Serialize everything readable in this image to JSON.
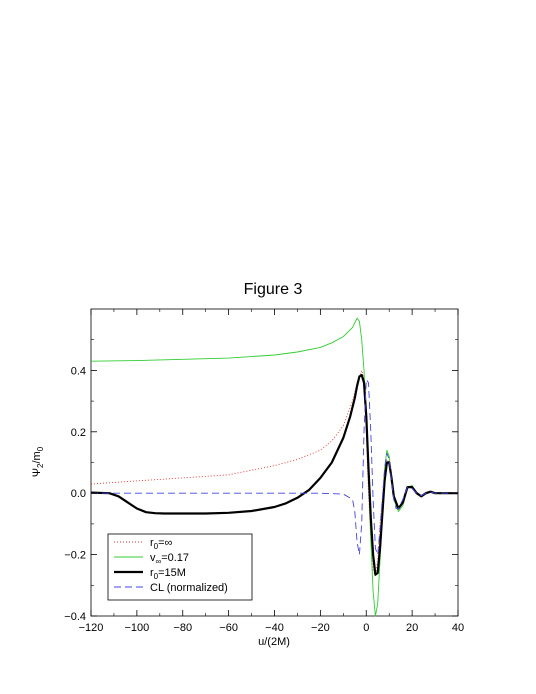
{
  "chart_data": {
    "type": "line",
    "title": "Figure 3",
    "xlabel": "u/(2M)",
    "ylabel_main": "Ψ",
    "ylabel_sub": "2",
    "ylabel_rest": "/m",
    "ylabel_sub2": "0",
    "xlim": [
      -120,
      40
    ],
    "ylim": [
      -0.4,
      0.6
    ],
    "x_ticks": [
      -120,
      -100,
      -80,
      -60,
      -40,
      -20,
      0,
      20,
      40
    ],
    "x_tick_labels": [
      "−120",
      "−100",
      "−80",
      "−60",
      "−40",
      "−20",
      "0",
      "20",
      "40"
    ],
    "y_ticks": [
      -0.4,
      -0.2,
      0.0,
      0.2,
      0.4
    ],
    "y_tick_labels": [
      "−0.4",
      "−0.2",
      "0.0",
      "0.2",
      "0.4"
    ],
    "grid": false,
    "legend_position": "bottom-left",
    "series": [
      {
        "name_main": "r",
        "name_sub": "0",
        "name_rest": "=∞",
        "color": "#e03030",
        "dash": "1,2",
        "width": 0.9,
        "x": [
          -120,
          -100,
          -80,
          -60,
          -50,
          -40,
          -30,
          -20,
          -15,
          -10,
          -6,
          -4,
          -2,
          -1,
          0,
          1,
          2,
          3,
          4,
          5,
          6,
          8,
          9,
          10,
          11,
          12,
          14,
          16,
          18,
          20,
          22,
          24,
          26,
          28,
          30,
          34,
          40
        ],
        "y": [
          0.03,
          0.04,
          0.05,
          0.06,
          0.075,
          0.09,
          0.11,
          0.14,
          0.17,
          0.22,
          0.3,
          0.36,
          0.4,
          0.37,
          0.2,
          0.0,
          -0.15,
          -0.25,
          -0.27,
          -0.22,
          -0.1,
          0.07,
          0.11,
          0.1,
          0.05,
          -0.01,
          -0.05,
          -0.03,
          0.02,
          0.02,
          0.0,
          -0.01,
          0.0,
          0.005,
          0.0,
          0.0,
          0.0
        ]
      },
      {
        "name_main": "v",
        "name_sub": "∞",
        "name_rest": "=0.17",
        "color": "#33cc33",
        "dash": "",
        "width": 0.9,
        "x": [
          -120,
          -100,
          -80,
          -60,
          -40,
          -30,
          -20,
          -15,
          -10,
          -6,
          -4,
          -3,
          -2,
          -1,
          0,
          1,
          2,
          3,
          4,
          5,
          6,
          8,
          9,
          10,
          11,
          12,
          14,
          16,
          18,
          20,
          22,
          24,
          26,
          28,
          30,
          34,
          40
        ],
        "y": [
          0.43,
          0.432,
          0.436,
          0.44,
          0.45,
          0.46,
          0.475,
          0.49,
          0.51,
          0.54,
          0.57,
          0.56,
          0.5,
          0.4,
          0.25,
          0.05,
          -0.15,
          -0.32,
          -0.4,
          -0.36,
          -0.22,
          0.08,
          0.14,
          0.12,
          0.05,
          -0.02,
          -0.06,
          -0.04,
          0.02,
          0.025,
          0.0,
          -0.01,
          0.0,
          0.005,
          0.0,
          0.0,
          0.0
        ]
      },
      {
        "name_main": "r",
        "name_sub": "0",
        "name_rest": "=15M",
        "color": "#000000",
        "dash": "",
        "width": 2.2,
        "x": [
          -120,
          -112,
          -108,
          -104,
          -100,
          -96,
          -92,
          -88,
          -80,
          -70,
          -60,
          -50,
          -40,
          -35,
          -30,
          -25,
          -20,
          -15,
          -10,
          -7,
          -5,
          -4,
          -3,
          -2,
          -1,
          0,
          1,
          2,
          3,
          4,
          5,
          6,
          8,
          9,
          10,
          11,
          12,
          14,
          16,
          18,
          20,
          22,
          24,
          26,
          28,
          30,
          34,
          40
        ],
        "y": [
          0.002,
          0.0,
          -0.01,
          -0.03,
          -0.05,
          -0.062,
          -0.065,
          -0.066,
          -0.066,
          -0.066,
          -0.064,
          -0.058,
          -0.045,
          -0.033,
          -0.015,
          0.01,
          0.05,
          0.1,
          0.18,
          0.25,
          0.31,
          0.35,
          0.38,
          0.385,
          0.36,
          0.25,
          0.08,
          -0.08,
          -0.2,
          -0.265,
          -0.26,
          -0.18,
          0.04,
          0.1,
          0.1,
          0.05,
          -0.01,
          -0.05,
          -0.03,
          0.02,
          0.02,
          0.0,
          -0.01,
          0.0,
          0.005,
          0.0,
          0.0,
          0.0
        ]
      },
      {
        "name_main": "CL (normalized)",
        "name_sub": "",
        "name_rest": "",
        "color": "#4444dd",
        "dash": "7,4",
        "width": 0.9,
        "x": [
          -120,
          -60,
          -20,
          -10,
          -6,
          -5,
          -4,
          -3,
          -2,
          -1,
          0,
          1,
          2,
          3,
          4,
          5,
          6,
          7,
          8,
          9,
          10,
          11,
          12,
          13,
          14,
          16,
          18,
          20,
          22,
          24,
          26,
          28,
          30,
          34,
          40
        ],
        "y": [
          0.0,
          0.0,
          0.0,
          -0.003,
          -0.02,
          -0.06,
          -0.16,
          -0.2,
          -0.1,
          0.2,
          0.37,
          0.36,
          0.2,
          -0.02,
          -0.18,
          -0.2,
          -0.12,
          -0.02,
          0.08,
          0.13,
          0.11,
          0.04,
          -0.02,
          -0.05,
          -0.05,
          -0.02,
          0.02,
          0.015,
          0.0,
          -0.008,
          0.0,
          0.004,
          0.0,
          0.0,
          0.0
        ]
      }
    ]
  }
}
